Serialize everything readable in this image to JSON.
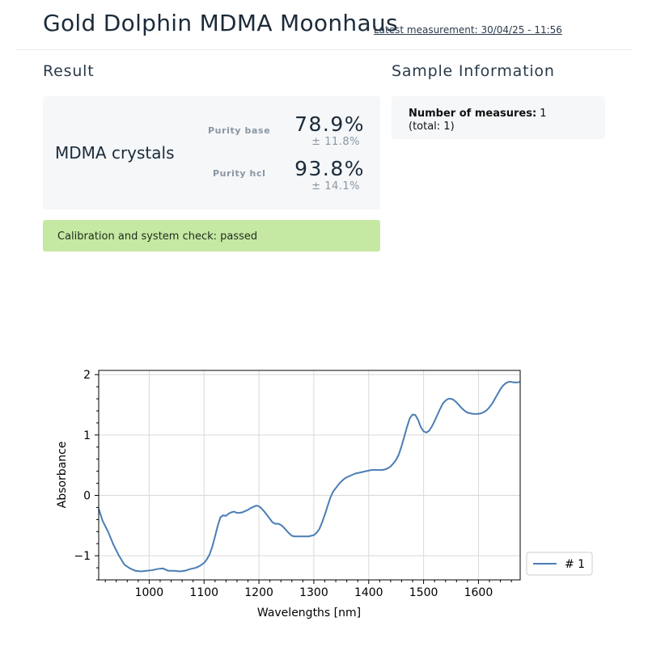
{
  "header": {
    "title": "Gold Dolphin MDMA Moonhaus",
    "latest_measurement": "Latest measurement: 30/04/25 - 11:56"
  },
  "result": {
    "section_title": "Result",
    "sample_name": "MDMA crystals",
    "purity": [
      {
        "label": "Purity base",
        "value": "78.9%",
        "deviation": "± 11.8%"
      },
      {
        "label": "Purity hcl",
        "value": "93.8%",
        "deviation": "± 14.1%"
      }
    ],
    "calibration": "Calibration and system check: passed",
    "calibration_color": "#c5e8a3"
  },
  "sample_information": {
    "section_title": "Sample Information",
    "measures_label": "Number of measures:",
    "measures_value": "1",
    "total": "(total: 1)"
  },
  "chart_data": {
    "type": "line",
    "title": "",
    "xlabel": "Wavelengths [nm]",
    "ylabel": "Absorbance",
    "xlim": [
      908,
      1676
    ],
    "ylim": [
      -1.4,
      2.07
    ],
    "xticks": [
      1000,
      1100,
      1200,
      1300,
      1400,
      1500,
      1600
    ],
    "yticks": [
      -1,
      0,
      1,
      2
    ],
    "ytick_labels": [
      "−1",
      "0",
      "1",
      "2"
    ],
    "grid": true,
    "legend_position": "outside-right",
    "series": [
      {
        "name": "# 1",
        "color": "#4a7db5",
        "x": [
          908,
          915,
          925,
          935,
          945,
          955,
          965,
          975,
          985,
          995,
          1005,
          1015,
          1025,
          1035,
          1045,
          1055,
          1065,
          1075,
          1085,
          1092,
          1100,
          1105,
          1110,
          1115,
          1120,
          1125,
          1130,
          1135,
          1140,
          1145,
          1150,
          1155,
          1160,
          1165,
          1170,
          1175,
          1180,
          1185,
          1190,
          1195,
          1200,
          1205,
          1210,
          1215,
          1220,
          1225,
          1230,
          1235,
          1240,
          1245,
          1250,
          1255,
          1260,
          1265,
          1270,
          1275,
          1280,
          1285,
          1290,
          1295,
          1300,
          1305,
          1310,
          1315,
          1320,
          1325,
          1330,
          1335,
          1340,
          1345,
          1350,
          1355,
          1360,
          1365,
          1370,
          1375,
          1380,
          1385,
          1390,
          1395,
          1400,
          1405,
          1410,
          1415,
          1420,
          1425,
          1430,
          1435,
          1440,
          1445,
          1450,
          1455,
          1460,
          1465,
          1470,
          1475,
          1480,
          1485,
          1490,
          1495,
          1500,
          1505,
          1510,
          1515,
          1520,
          1525,
          1530,
          1535,
          1540,
          1545,
          1550,
          1555,
          1560,
          1565,
          1570,
          1575,
          1580,
          1585,
          1590,
          1595,
          1600,
          1605,
          1610,
          1615,
          1620,
          1625,
          1630,
          1635,
          1640,
          1645,
          1650,
          1655,
          1660,
          1665,
          1670,
          1676
        ],
        "y": [
          -0.22,
          -0.42,
          -0.6,
          -0.82,
          -1.0,
          -1.15,
          -1.21,
          -1.25,
          -1.26,
          -1.25,
          -1.24,
          -1.22,
          -1.21,
          -1.25,
          -1.25,
          -1.26,
          -1.25,
          -1.22,
          -1.2,
          -1.17,
          -1.12,
          -1.06,
          -0.98,
          -0.85,
          -0.68,
          -0.5,
          -0.36,
          -0.33,
          -0.34,
          -0.3,
          -0.28,
          -0.27,
          -0.29,
          -0.29,
          -0.28,
          -0.26,
          -0.24,
          -0.21,
          -0.19,
          -0.17,
          -0.18,
          -0.22,
          -0.27,
          -0.33,
          -0.39,
          -0.45,
          -0.47,
          -0.47,
          -0.49,
          -0.53,
          -0.58,
          -0.63,
          -0.67,
          -0.68,
          -0.68,
          -0.68,
          -0.68,
          -0.68,
          -0.68,
          -0.67,
          -0.66,
          -0.62,
          -0.56,
          -0.45,
          -0.32,
          -0.18,
          -0.04,
          0.06,
          0.12,
          0.18,
          0.23,
          0.27,
          0.3,
          0.32,
          0.34,
          0.36,
          0.37,
          0.38,
          0.39,
          0.4,
          0.41,
          0.42,
          0.42,
          0.42,
          0.42,
          0.42,
          0.43,
          0.45,
          0.48,
          0.53,
          0.59,
          0.68,
          0.82,
          0.98,
          1.14,
          1.28,
          1.34,
          1.33,
          1.25,
          1.13,
          1.06,
          1.04,
          1.07,
          1.14,
          1.23,
          1.33,
          1.43,
          1.52,
          1.57,
          1.6,
          1.6,
          1.58,
          1.54,
          1.49,
          1.44,
          1.4,
          1.37,
          1.36,
          1.35,
          1.35,
          1.35,
          1.36,
          1.38,
          1.41,
          1.46,
          1.52,
          1.6,
          1.68,
          1.76,
          1.82,
          1.86,
          1.88,
          1.88,
          1.87,
          1.87,
          1.88
        ]
      }
    ]
  }
}
